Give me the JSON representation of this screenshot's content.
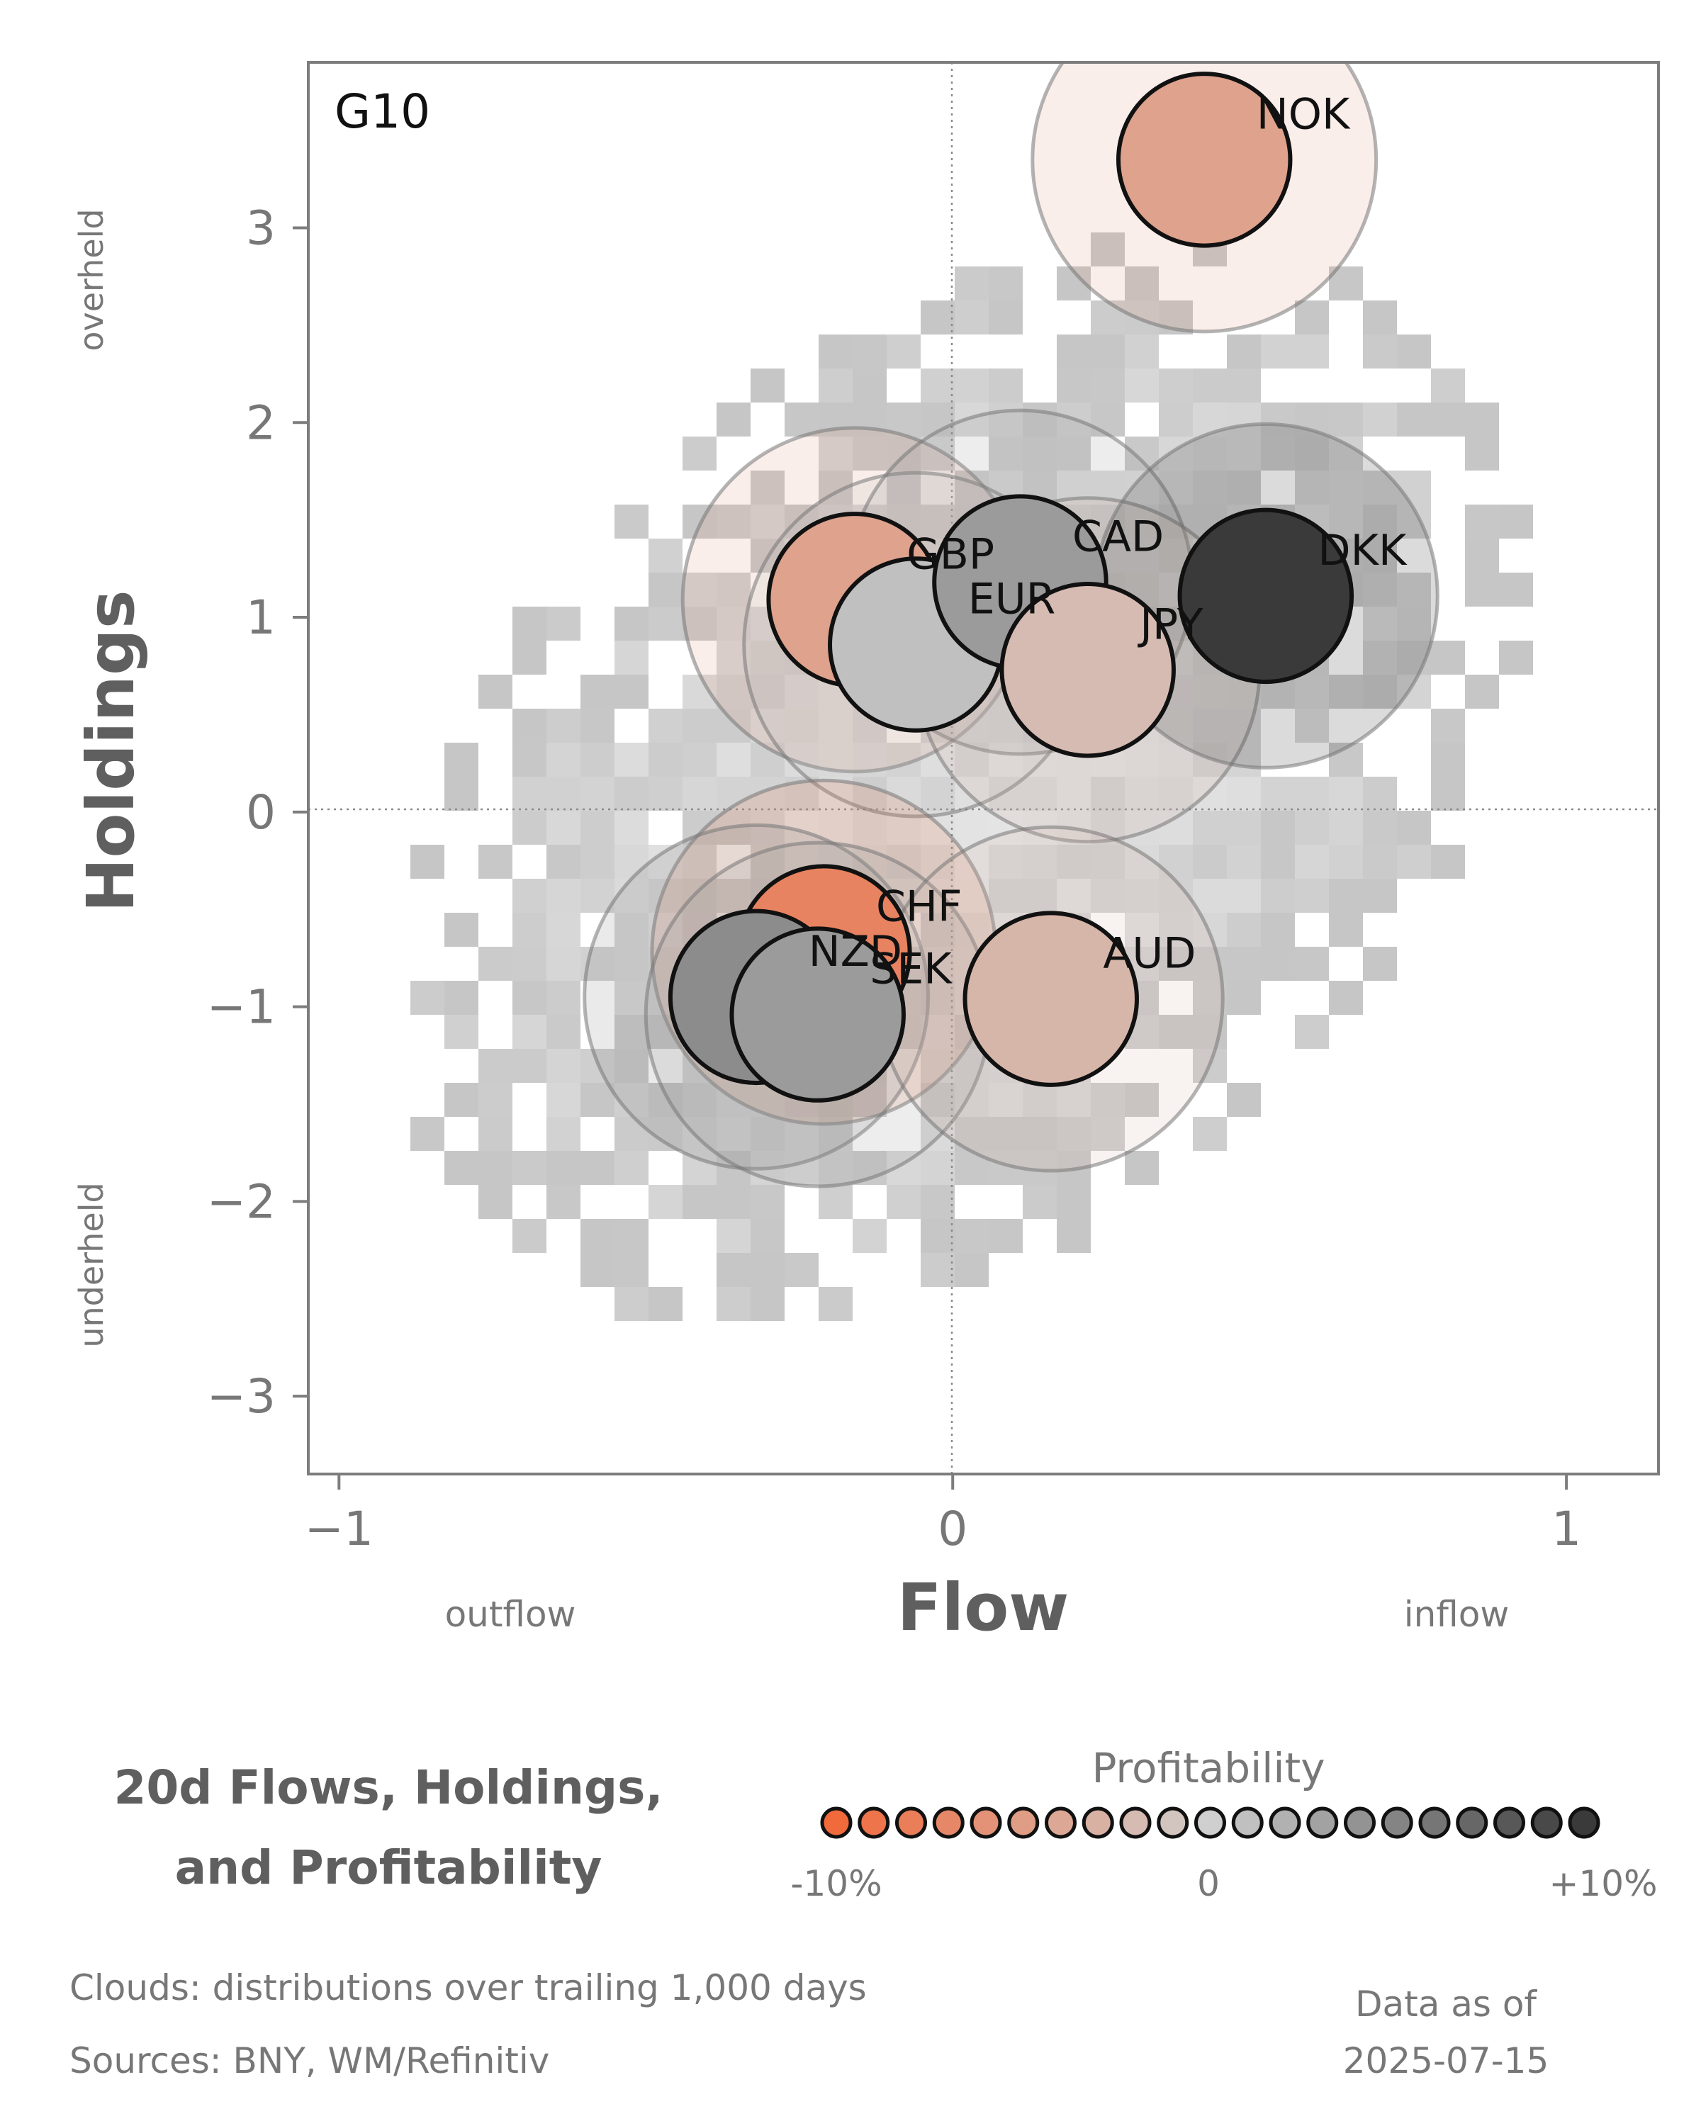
{
  "chart_data": {
    "type": "scatter",
    "panel_label": "G10",
    "xlabel": "Flow",
    "ylabel": "Holdings",
    "x_annotations": {
      "left": "outflow",
      "right": "inflow"
    },
    "y_annotations": {
      "top": "overheld",
      "bottom": "underheld"
    },
    "xlim": [
      -1.05,
      1.15
    ],
    "ylim": [
      -3.4,
      3.85
    ],
    "x_ticks": [
      -1,
      0,
      1
    ],
    "x_tick_labels": [
      "−1",
      "0",
      "1"
    ],
    "y_ticks": [
      -3,
      -2,
      -1,
      0,
      1,
      2,
      3
    ],
    "y_tick_labels": [
      "−3",
      "−2",
      "−1",
      "0",
      "1",
      "2",
      "3"
    ],
    "reference_lines": {
      "x": 0,
      "y": 0,
      "style": "dotted"
    },
    "background": "density clouds of trailing distributions (grey)",
    "points": [
      {
        "name": "NOK",
        "x": 0.41,
        "y": 3.35,
        "profitability": -0.045
      },
      {
        "name": "GBP",
        "x": -0.16,
        "y": 1.09,
        "profitability": -0.045
      },
      {
        "name": "EUR",
        "x": -0.06,
        "y": 0.86,
        "profitability": 0.01
      },
      {
        "name": "CAD",
        "x": 0.11,
        "y": 1.18,
        "profitability": 0.035
      },
      {
        "name": "JPY",
        "x": 0.22,
        "y": 0.73,
        "profitability": -0.02
      },
      {
        "name": "DKK",
        "x": 0.51,
        "y": 1.11,
        "profitability": 0.1
      },
      {
        "name": "CHF",
        "x": -0.21,
        "y": -0.72,
        "profitability": -0.075
      },
      {
        "name": "NZD",
        "x": -0.32,
        "y": -0.95,
        "profitability": 0.045
      },
      {
        "name": "SEK",
        "x": -0.22,
        "y": -1.04,
        "profitability": 0.035
      },
      {
        "name": "AUD",
        "x": 0.16,
        "y": -0.96,
        "profitability": -0.025
      }
    ],
    "colorbar": {
      "title": "Profitability",
      "tick_labels": [
        "-10%",
        "0",
        "+10%"
      ],
      "range": [
        -0.1,
        0.1
      ],
      "low_color": "#f06a3c",
      "mid_color": "#cfcfcf",
      "high_color": "#3a3a3a"
    }
  },
  "footer": {
    "title_line1": "20d Flows, Holdings,",
    "title_line2": "and Profitability",
    "clouds_note": "Clouds:  distributions over trailing 1,000 days",
    "sources_note": "Sources:  BNY, WM/Refinitiv",
    "asof_line1": "Data as of",
    "asof_line2": "2025-07-15"
  }
}
